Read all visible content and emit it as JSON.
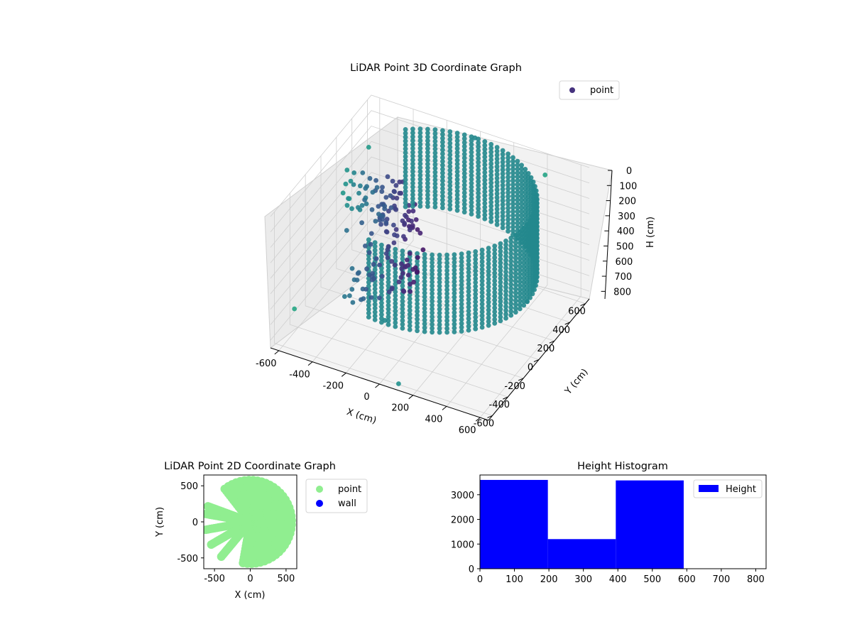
{
  "colors": {
    "viridis_dark": "#440154",
    "viridis_mid": "#3b528b",
    "viridis_teal": "#21918c",
    "viridis_yellow": "#fde725",
    "scatter2d_point": "#90ee90",
    "scatter2d_wall": "#0000ff",
    "histogram_bar": "#0000ff",
    "pane": "#f2f2f2",
    "grid": "#cfcfcf"
  },
  "chart_data": [
    {
      "type": "scatter",
      "title": "LiDAR Point 3D Coordinate Graph",
      "xlabel": "X (cm)",
      "ylabel": "Y (cm)",
      "zlabel": "H (cm)",
      "xlim": [
        -650,
        650
      ],
      "ylim": [
        -650,
        650
      ],
      "zlim": [
        850,
        0
      ],
      "x_ticks": [
        -600,
        -400,
        -200,
        0,
        200,
        400,
        600
      ],
      "y_ticks": [
        -600,
        -400,
        -200,
        0,
        200,
        400,
        600
      ],
      "z_ticks": [
        0,
        100,
        200,
        300,
        400,
        500,
        600,
        700,
        800
      ],
      "colormap": "viridis",
      "grid": true,
      "legend": {
        "position": "top-right",
        "entries": [
          "point"
        ]
      },
      "series": [
        {
          "name": "point",
          "structure": "dense cylindrical wall of points, radius about 580 cm, heights 0 to about 500 cm, spanning angles -100 to 130 degrees; plus radial rays of points toward negative X",
          "sample_points": [
            {
              "x": 580,
              "y": 0,
              "z": 0
            },
            {
              "x": 580,
              "y": 0,
              "z": 500
            },
            {
              "x": 0,
              "y": 580,
              "z": 0
            },
            {
              "x": 0,
              "y": -580,
              "z": 480
            },
            {
              "x": -300,
              "y": 150,
              "z": 300
            },
            {
              "x": -450,
              "y": -100,
              "z": 350
            },
            {
              "x": -550,
              "y": 400,
              "z": 150
            },
            {
              "x": -600,
              "y": -450,
              "z": 700
            },
            {
              "x": 100,
              "y": -620,
              "z": 830
            },
            {
              "x": 400,
              "y": 620,
              "z": 120
            }
          ]
        }
      ]
    },
    {
      "type": "scatter",
      "title": "LiDAR Point 2D Coordinate Graph",
      "xlabel": "X (cm)",
      "ylabel": "Y (cm)",
      "xlim": [
        -650,
        650
      ],
      "ylim": [
        -650,
        650
      ],
      "x_ticks": [
        -500,
        0,
        500
      ],
      "y_ticks": [
        -500,
        0,
        500
      ],
      "legend": {
        "position": "outside-right",
        "entries": [
          "point",
          "wall"
        ]
      },
      "series": [
        {
          "name": "point",
          "color": "#90ee90",
          "structure": "filled half-disk of radius about 580 cm on positive X side with fingers toward negative X"
        },
        {
          "name": "wall",
          "color": "#0000ff",
          "values": []
        }
      ]
    },
    {
      "type": "bar",
      "title": "Height Histogram",
      "xlabel": "",
      "ylabel": "",
      "bin_edges": [
        0,
        197,
        394,
        591
      ],
      "values": [
        3600,
        1200,
        3580
      ],
      "xlim": [
        0,
        830
      ],
      "ylim": [
        0,
        3800
      ],
      "x_ticks": [
        0,
        100,
        200,
        300,
        400,
        500,
        600,
        700,
        800
      ],
      "y_ticks": [
        0,
        1000,
        2000,
        3000
      ],
      "legend": {
        "position": "top-right",
        "entries": [
          "Height"
        ]
      },
      "series": [
        {
          "name": "Height",
          "color": "#0000ff"
        }
      ]
    }
  ]
}
